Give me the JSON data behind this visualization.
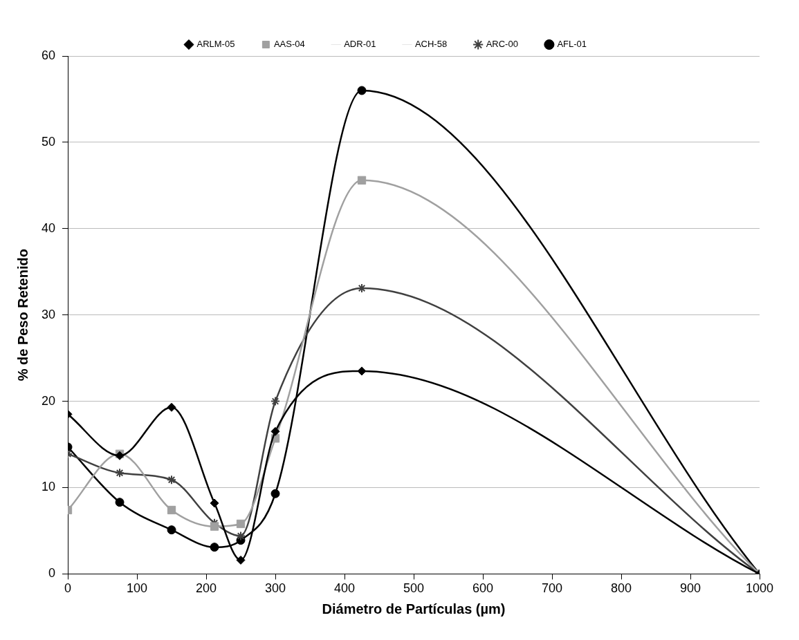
{
  "chart_data": {
    "type": "line",
    "xlabel": "Diámetro de Partículas (µm)",
    "ylabel": "% de Peso Retenido",
    "x": [
      0,
      75,
      150,
      212,
      250,
      300,
      425,
      1000
    ],
    "xlim": [
      0,
      1000
    ],
    "xticks": [
      0,
      100,
      200,
      300,
      400,
      500,
      600,
      700,
      800,
      900,
      1000
    ],
    "ylim": [
      0,
      60
    ],
    "yticks": [
      0,
      10,
      20,
      30,
      40,
      50,
      60
    ],
    "grid": "y",
    "legend": "top",
    "series": [
      {
        "name": "ARLM-05",
        "color": "#000000",
        "marker": "diamond",
        "values": [
          18.5,
          13.7,
          19.3,
          8.2,
          1.6,
          16.5,
          23.5,
          0
        ]
      },
      {
        "name": "AAS-04",
        "color": "#a0a0a0",
        "marker": "square",
        "values": [
          7.4,
          13.9,
          7.4,
          5.5,
          5.8,
          15.7,
          45.6,
          0
        ]
      },
      {
        "name": "ADR-01",
        "color": "#e6e6e6",
        "marker": "none",
        "values": [
          null,
          null,
          null,
          null,
          null,
          null,
          null,
          null
        ]
      },
      {
        "name": "ACH-58",
        "color": "#e6e6e6",
        "marker": "none",
        "values": [
          null,
          null,
          null,
          null,
          null,
          null,
          null,
          null
        ]
      },
      {
        "name": "ARC-00",
        "color": "#404040",
        "marker": "cross",
        "values": [
          13.9,
          11.7,
          10.9,
          5.9,
          4.4,
          20,
          33.1,
          0
        ]
      },
      {
        "name": "AFL-01",
        "color": "#000000",
        "marker": "circle",
        "values": [
          14.7,
          8.3,
          5.1,
          3.1,
          3.9,
          9.3,
          56,
          0
        ]
      }
    ]
  }
}
